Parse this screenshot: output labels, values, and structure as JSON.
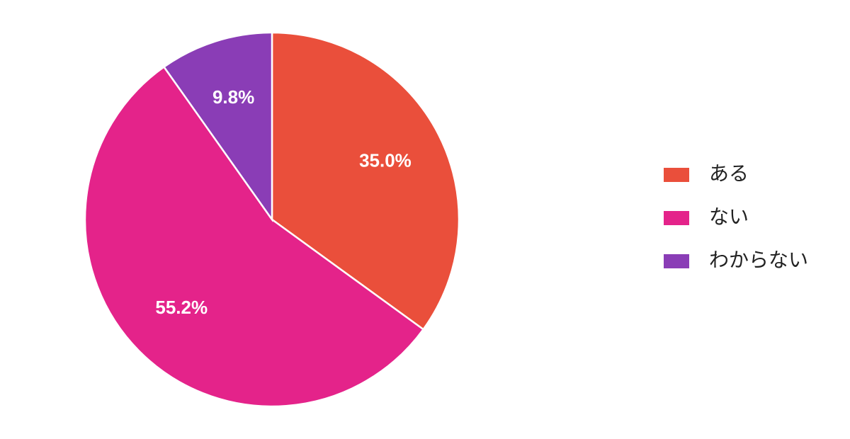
{
  "chart_data": {
    "type": "pie",
    "categories": [
      "ある",
      "ない",
      "わからない"
    ],
    "values": [
      35.0,
      55.2,
      9.8
    ],
    "value_labels": [
      "35.0%",
      "55.2%",
      "9.8%"
    ],
    "colors": [
      "#ea4f3b",
      "#e4238a",
      "#8a3db6"
    ],
    "legend": "right"
  }
}
